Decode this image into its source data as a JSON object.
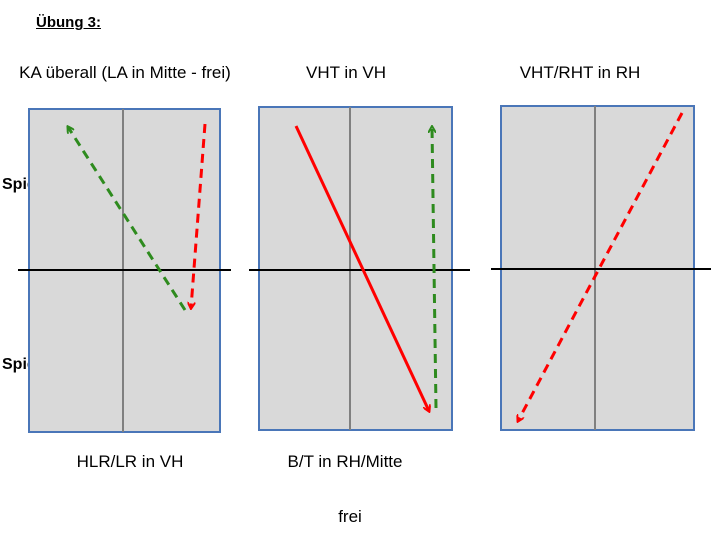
{
  "title": "Übung 3:",
  "captions": {
    "top_left": "KA überall (LA in Mitte - frei)",
    "top_middle": "VHT in VH",
    "top_right": "VHT/RHT in RH",
    "bottom_left": "HLR/LR in VH",
    "bottom_middle": "B/T in RH/Mitte",
    "bottom_center": "frei"
  },
  "players": {
    "a": "Spieler A",
    "b": "Spieler B"
  },
  "colors": {
    "court_fill": "#d9d9d9",
    "court_border": "#4a76b8",
    "center_line": "#808080",
    "net": "#000000",
    "red": "#ff0000",
    "green": "#2e8b1e"
  }
}
